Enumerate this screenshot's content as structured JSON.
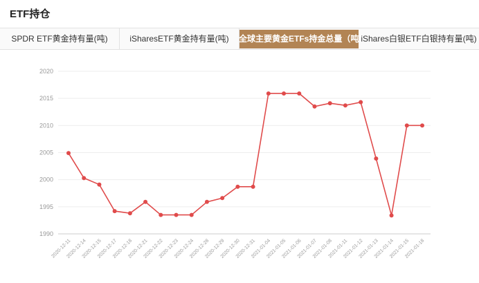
{
  "page": {
    "title": "ETF持仓"
  },
  "tabs": [
    {
      "label": "SPDR ETF黄金持有量(吨)",
      "active": false
    },
    {
      "label": "iSharesETF黄金持有量(吨)",
      "active": false
    },
    {
      "label": "全球主要黄金ETFs持金总量（吨）",
      "active": true
    },
    {
      "label": "iShares白银ETF白银持有量(吨)",
      "active": false
    }
  ],
  "colors": {
    "line": "#e04b4b",
    "active_tab": "#b28454",
    "grid": "#eeeeee",
    "axis_text": "#999999"
  },
  "chart_data": {
    "type": "line",
    "title": "",
    "xlabel": "",
    "ylabel": "",
    "ylim": [
      1990,
      2020
    ],
    "yticks": [
      1990,
      1995,
      2000,
      2005,
      2010,
      2015,
      2020
    ],
    "grid": true,
    "categories": [
      "2020-12-11",
      "2020-12-14",
      "2020-12-15",
      "2020-12-17",
      "2020-12-18",
      "2020-12-21",
      "2020-12-22",
      "2020-12-23",
      "2020-12-24",
      "2020-12-28",
      "2020-12-29",
      "2020-12-30",
      "2020-12-31",
      "2021-01-04",
      "2021-01-05",
      "2021-01-06",
      "2021-01-07",
      "2021-01-08",
      "2021-01-11",
      "2021-01-12",
      "2021-01-13",
      "2021-01-14",
      "2021-01-15",
      "2021-01-18"
    ],
    "series": [
      {
        "values": [
          2004.9,
          2000.3,
          1999.1,
          1994.2,
          1993.8,
          1995.9,
          1993.5,
          1993.5,
          1993.5,
          1995.9,
          1996.6,
          1998.7,
          1998.7,
          2015.9,
          2015.9,
          2015.9,
          2013.5,
          2014.1,
          2013.7,
          2014.3,
          2003.9,
          1993.4,
          2010.0,
          2010.0
        ]
      }
    ]
  }
}
